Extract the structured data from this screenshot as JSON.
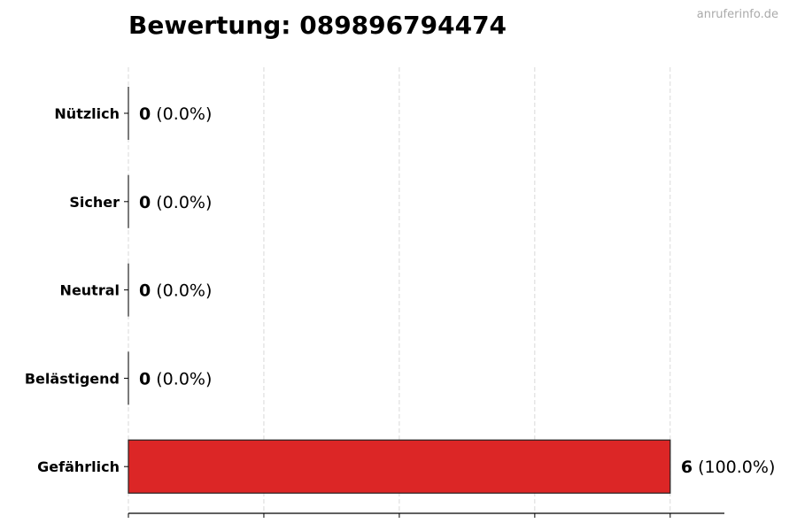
{
  "chart_data": {
    "type": "bar",
    "orientation": "horizontal",
    "title": "Bewertung: 089896794474",
    "categories": [
      "Nützlich",
      "Sicher",
      "Neutral",
      "Belästigend",
      "Gefährlich"
    ],
    "values": [
      0,
      0,
      0,
      0,
      6
    ],
    "labels": [
      {
        "count": "0",
        "pct": "(0.0%)"
      },
      {
        "count": "0",
        "pct": "(0.0%)"
      },
      {
        "count": "0",
        "pct": "(0.0%)"
      },
      {
        "count": "0",
        "pct": "(0.0%)"
      },
      {
        "count": "6",
        "pct": "(100.0%)"
      }
    ],
    "xlim": [
      0,
      6.6
    ],
    "xticks": [
      0,
      1.5,
      3,
      4.5,
      6
    ],
    "grid": "x, dashed",
    "bar_color": "#dc2626",
    "xlabel": "",
    "ylabel": ""
  },
  "watermark": "anruferinfo.de"
}
